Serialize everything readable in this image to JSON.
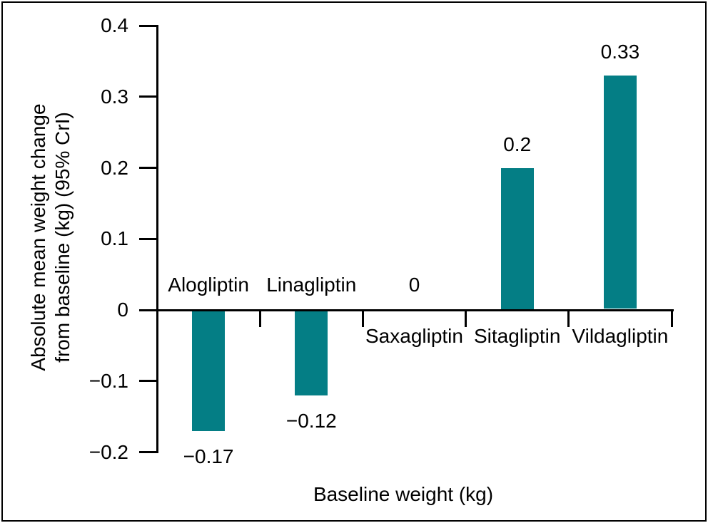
{
  "figure": {
    "y_axis_title_line1": "Absolute mean weight change",
    "y_axis_title_line2": "from baseline (kg) (95% CrI)",
    "x_axis_title": "Baseline weight (kg)"
  },
  "chart_data": {
    "type": "bar",
    "categories": [
      "Alogliptin",
      "Linagliptin",
      "Saxagliptin",
      "Sitagliptin",
      "Vildagliptin"
    ],
    "values": [
      -0.17,
      -0.12,
      0,
      0.2,
      0.33
    ],
    "value_labels": [
      "−0.17",
      "−0.12",
      "0",
      "0.2",
      "0.33"
    ],
    "title": "",
    "xlabel": "Baseline weight (kg)",
    "ylabel": "Absolute mean weight change from baseline (kg) (95% CrI)",
    "ylim": [
      -0.2,
      0.4
    ],
    "yticks": [
      0.4,
      0.3,
      0.2,
      0.1,
      0,
      -0.1,
      -0.2
    ],
    "ytick_labels": [
      "0.4",
      "0.3",
      "0.2",
      "0.1",
      "0",
      "−0.1",
      "−0.2"
    ],
    "bar_color": "#047E85",
    "axis_color": "#000000",
    "grid": false,
    "legend": null
  }
}
